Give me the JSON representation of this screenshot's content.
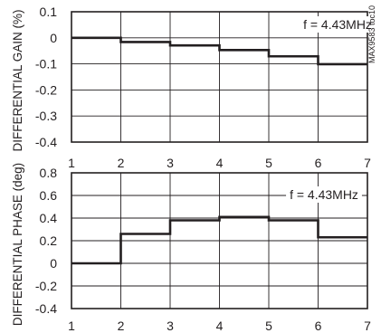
{
  "chart_data": [
    {
      "type": "line",
      "step": true,
      "title": "",
      "xlabel": "",
      "ylabel": "DIFFERENTIAL GAIN (%)",
      "xlim": [
        1,
        7
      ],
      "ylim": [
        -0.4,
        0.1
      ],
      "x_ticks": [
        1,
        2,
        3,
        4,
        5,
        6,
        7
      ],
      "y_ticks": [
        0.1,
        0,
        -0.1,
        -0.2,
        -0.3,
        -0.4
      ],
      "x_tick_labels": [
        "1",
        "2",
        "3",
        "4",
        "5",
        "6",
        "7"
      ],
      "y_tick_labels": [
        "0.1",
        "0",
        "-0.1",
        "-0.2",
        "-0.3",
        "-0.4"
      ],
      "grid": true,
      "annotation": "f = 4.43MHz",
      "side_label": "MAX9583 toc10",
      "series": [
        {
          "x": [
            1,
            2,
            3,
            4,
            5,
            6,
            7
          ],
          "y": [
            0.0,
            -0.016,
            -0.029,
            -0.047,
            -0.071,
            -0.101,
            -0.101
          ]
        }
      ]
    },
    {
      "type": "line",
      "step": true,
      "title": "",
      "xlabel": "",
      "ylabel": "DIFFERENTIAL PHASE (deg)",
      "xlim": [
        1,
        7
      ],
      "ylim": [
        -0.4,
        0.8
      ],
      "x_ticks": [
        1,
        2,
        3,
        4,
        5,
        6,
        7
      ],
      "y_ticks": [
        0.8,
        0.6,
        0.4,
        0.2,
        0,
        -0.2,
        -0.4
      ],
      "x_tick_labels": [
        "1",
        "2",
        "3",
        "4",
        "5",
        "6",
        "7"
      ],
      "y_tick_labels": [
        "0.8",
        "0.6",
        "0.4",
        "0.2",
        "0",
        "-0.2",
        "-0.4"
      ],
      "grid": true,
      "annotation": "f = 4.43MHz",
      "series": [
        {
          "x": [
            1,
            2,
            3,
            4,
            5,
            6,
            7
          ],
          "y": [
            0.0,
            0.26,
            0.38,
            0.41,
            0.38,
            0.23,
            0.23
          ]
        }
      ]
    }
  ]
}
